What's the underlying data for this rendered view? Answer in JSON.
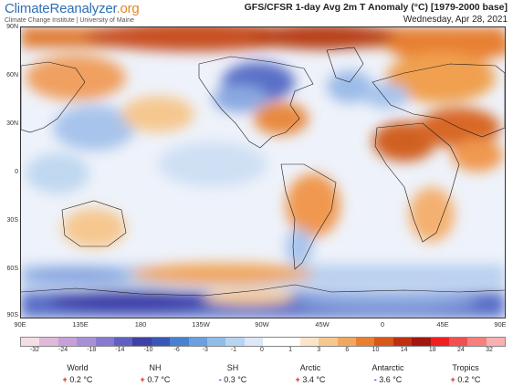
{
  "brand": {
    "name_main": "ClimateReanalyzer",
    "name_suffix": ".org",
    "subtitle": "Climate Change Institute | University of Maine"
  },
  "header": {
    "title": "GFS/CFSR 1-day Avg 2m T Anomaly (°C) [1979-2000 base]",
    "date": "Wednesday, Apr 28, 2021"
  },
  "map": {
    "lat_labels": [
      "90N",
      "60N",
      "30N",
      "0",
      "30S",
      "60S",
      "90S"
    ],
    "lon_labels": [
      "90E",
      "135E",
      "180",
      "135W",
      "90W",
      "45W",
      "0",
      "45E",
      "90E"
    ]
  },
  "colors": {
    "scale": [
      "#f5dde8",
      "#e0b8d8",
      "#c8a0d8",
      "#a890d8",
      "#8878d0",
      "#6060c0",
      "#4040a8",
      "#3858b8",
      "#4a80d0",
      "#6aa0e0",
      "#90bce8",
      "#b8d4f0",
      "#dce8f8",
      "#ffffff",
      "#ffffff",
      "#fbe4c8",
      "#f6c890",
      "#f0a860",
      "#e88030",
      "#d85818",
      "#c03010",
      "#a01810",
      "#f02020",
      "#f05050",
      "#f58080",
      "#f8b0b0"
    ]
  },
  "scale_labels": [
    "-32",
    "-24",
    "-18",
    "-14",
    "-10",
    "-6",
    "-3",
    "-1",
    "0",
    "1",
    "3",
    "6",
    "10",
    "14",
    "18",
    "24",
    "32"
  ],
  "stats": [
    {
      "name": "World",
      "sign": "+",
      "value": "0.2 °C"
    },
    {
      "name": "NH",
      "sign": "+",
      "value": "0.7 °C"
    },
    {
      "name": "SH",
      "sign": "-",
      "value": "0.3 °C"
    },
    {
      "name": "Arctic",
      "sign": "+",
      "value": "3.4 °C"
    },
    {
      "name": "Antarctic",
      "sign": "-",
      "value": "3.6 °C"
    },
    {
      "name": "Tropics",
      "sign": "+",
      "value": "0.2 °C"
    }
  ]
}
